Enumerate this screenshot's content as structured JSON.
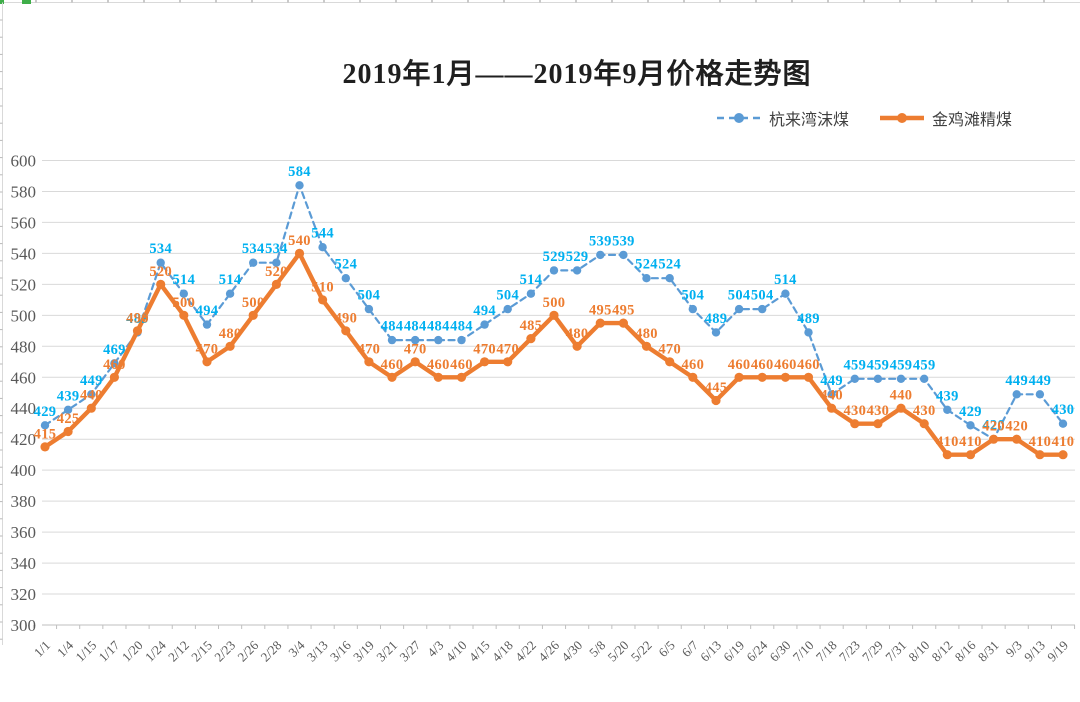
{
  "chart_data": {
    "type": "line",
    "title": "2019年1月——2019年9月价格走势图",
    "xlabel": "",
    "ylabel": "",
    "ylim": [
      300,
      600
    ],
    "ytick_step": 20,
    "yticks": [
      300,
      320,
      340,
      360,
      380,
      400,
      420,
      440,
      460,
      480,
      500,
      520,
      540,
      560,
      580,
      600
    ],
    "grid": true,
    "legend_position": "top-right",
    "data_labels": true,
    "categories": [
      "1/1",
      "1/4",
      "1/15",
      "1/17",
      "1/20",
      "1/24",
      "2/12",
      "2/15",
      "2/23",
      "2/26",
      "2/28",
      "3/4",
      "3/13",
      "3/16",
      "3/19",
      "3/21",
      "3/27",
      "4/3",
      "4/10",
      "4/15",
      "4/18",
      "4/22",
      "4/26",
      "4/30",
      "5/8",
      "5/20",
      "5/22",
      "6/5",
      "6/7",
      "6/13",
      "6/19",
      "6/24",
      "6/30",
      "7/10",
      "7/18",
      "7/23",
      "7/29",
      "7/31",
      "8/10",
      "8/12",
      "8/16",
      "8/31",
      "9/3",
      "9/13",
      "9/19"
    ],
    "series": [
      {
        "name": "杭来湾沫煤",
        "line_style": "dashed",
        "color": "#5B9BD5",
        "label_color": "#00B0F0",
        "values": [
          429,
          439,
          449,
          469,
          489,
          534,
          514,
          494,
          514,
          534,
          534,
          584,
          544,
          524,
          504,
          484,
          484,
          484,
          484,
          494,
          504,
          514,
          529,
          529,
          539,
          539,
          524,
          524,
          504,
          489,
          504,
          504,
          514,
          489,
          449,
          459,
          459,
          459,
          459,
          439,
          429,
          420,
          449,
          449,
          430
        ]
      },
      {
        "name": "金鸡滩精煤",
        "line_style": "solid",
        "color": "#ED7D31",
        "label_color": "#ED7D31",
        "values": [
          415,
          425,
          440,
          460,
          490,
          520,
          500,
          470,
          480,
          500,
          520,
          540,
          510,
          490,
          470,
          460,
          470,
          460,
          460,
          470,
          470,
          485,
          500,
          480,
          495,
          495,
          480,
          470,
          460,
          445,
          460,
          460,
          460,
          460,
          440,
          430,
          430,
          440,
          430,
          410,
          410,
          420,
          420,
          410,
          410
        ]
      }
    ]
  },
  "style": {
    "background": "#ffffff",
    "grid_color": "#d9d9d9",
    "axis_color": "#bfbfbf",
    "tick_label_color": "#595959",
    "title_color": "#1f1f1f",
    "legend_text_color": "#404040",
    "sheet_edge_color": "#d9d9d9",
    "sheet_tick_color": "#b8b8b8",
    "sheet_mark_color": "#3fae49"
  }
}
